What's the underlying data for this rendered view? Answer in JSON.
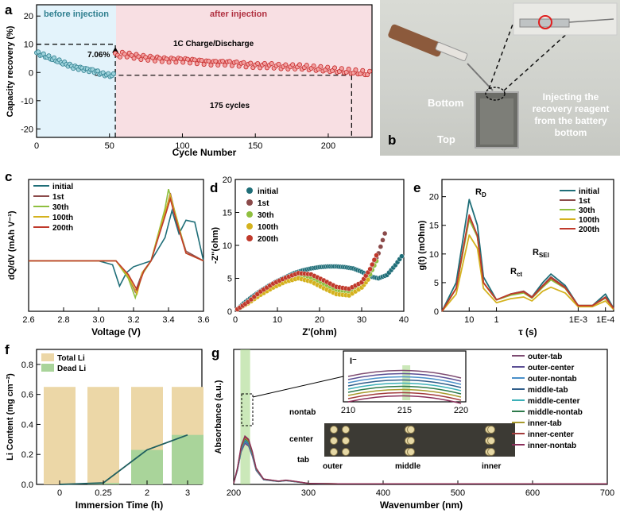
{
  "panels": {
    "a": {
      "letter": "a",
      "ylabel": "Capacity recovery (%)",
      "xlabel": "Cycle Number",
      "region_before": "before injection",
      "region_after": "after injection",
      "ann_mode": "1C Charge/Discharge",
      "ann_jump": "7.06%",
      "ann_cycles": "175 cycles",
      "xticks": [
        "0",
        "50",
        "100",
        "150",
        "200"
      ],
      "yticks": [
        "20",
        "10",
        "0",
        "-10",
        "-20"
      ],
      "colors": {
        "before": "#2f7f8f",
        "after": "#c62828",
        "before_bg": "#e3f3fb",
        "after_bg": "#f8dfe3"
      }
    },
    "b": {
      "letter": "b",
      "label_bottom": "Bottom",
      "label_top": "Top",
      "caption_lines": [
        "Injecting the",
        "recovery reagent",
        "from the battery",
        "bottom"
      ]
    },
    "c": {
      "letter": "c",
      "ylabel": "dQ/dV (mAh V⁻¹)",
      "xlabel": "Voltage (V)",
      "xticks": [
        "2.6",
        "2.8",
        "3.0",
        "3.2",
        "3.4",
        "3.6"
      ],
      "legend": [
        "initial",
        "1st",
        "30th",
        "100th",
        "200th"
      ]
    },
    "d": {
      "letter": "d",
      "ylabel": "-Z''(ohm)",
      "xlabel": "Z'(ohm)",
      "xticks": [
        "0",
        "10",
        "20",
        "30",
        "40"
      ],
      "yticks": [
        "20",
        "15",
        "10",
        "5",
        "0"
      ],
      "legend": [
        "initial",
        "1st",
        "30th",
        "100th",
        "200th"
      ]
    },
    "e": {
      "letter": "e",
      "ylabel": "g(t) (mOhm)",
      "xlabel": "τ (s)",
      "xticks": [
        "10",
        "1",
        "1E-3",
        "1E-4"
      ],
      "yticks": [
        "20",
        "15",
        "10",
        "5",
        "0"
      ],
      "peak_labels": [
        "R",
        "R",
        "R"
      ],
      "peak_subs": [
        "D",
        "ct",
        "SEI"
      ],
      "legend": [
        "initial",
        "1st",
        "30th",
        "100th",
        "200th"
      ]
    },
    "f": {
      "letter": "f",
      "ylabel": "Li Content (mg cm⁻²)",
      "xlabel": "Immersion Time (h)",
      "xticks": [
        "0",
        "0.25",
        "2",
        "3"
      ],
      "yticks": [
        "0.8",
        "0.6",
        "0.4",
        "0.2",
        "0.0"
      ],
      "legend": [
        "Total Li",
        "Dead Li"
      ]
    },
    "g": {
      "letter": "g",
      "ylabel": "Absorbance (a.u.)",
      "xlabel": "Wavenumber (nm)",
      "xticks": [
        "200",
        "300",
        "400",
        "500",
        "600",
        "700"
      ],
      "inset_title": "I⁻",
      "inset_xticks": [
        "210",
        "215",
        "220"
      ],
      "photo_rows": [
        "nontab",
        "center",
        "tab"
      ],
      "photo_cols": [
        "outer",
        "middle",
        "inner"
      ],
      "legend": [
        "outer-tab",
        "outer-center",
        "outer-nontab",
        "middle-tab",
        "middle-center",
        "middle-nontab",
        "inner-tab",
        "inner-center",
        "inner-nontab"
      ]
    }
  },
  "series_colors": {
    "initial": "#1f6e78",
    "1st": "#8b4a4a",
    "30th": "#8fbf3f",
    "100th": "#d4b21e",
    "200th": "#c0392b"
  },
  "g_colors": [
    "#7e4c72",
    "#5b4f94",
    "#4a90c9",
    "#2f5d8a",
    "#3cb0b8",
    "#2d7a4b",
    "#a89a2d",
    "#a33c3c",
    "#8a2f5a"
  ],
  "chart_data": [
    {
      "type": "scatter",
      "title": "",
      "xlabel": "Cycle Number",
      "ylabel": "Capacity recovery (%)",
      "xlim": [
        0,
        230
      ],
      "ylim": [
        -23,
        24
      ],
      "series": [
        {
          "name": "before injection",
          "x": [
            0,
            5,
            10,
            15,
            20,
            25,
            30,
            35,
            40,
            45,
            50,
            53
          ],
          "y": [
            7,
            6,
            5,
            4,
            3,
            2,
            1.5,
            1,
            0.5,
            -0.5,
            -1,
            -1
          ]
        },
        {
          "name": "after injection",
          "x": [
            54,
            60,
            70,
            80,
            90,
            100,
            110,
            120,
            130,
            140,
            150,
            160,
            170,
            180,
            190,
            200,
            210,
            220,
            229
          ],
          "y": [
            6,
            6.5,
            5.5,
            5,
            4.5,
            4.5,
            4,
            3.5,
            3.5,
            3,
            2.5,
            2.5,
            2,
            2,
            1.5,
            1,
            0.5,
            0,
            -0.5
          ]
        }
      ]
    },
    {
      "type": "line",
      "xlabel": "Voltage (V)",
      "ylabel": "dQ/dV (mAh V⁻¹)",
      "xlim": [
        2.6,
        3.6
      ],
      "series": [
        {
          "name": "initial",
          "x": [
            2.6,
            3.0,
            3.08,
            3.12,
            3.16,
            3.2,
            3.3,
            3.38,
            3.42,
            3.46,
            3.5,
            3.55,
            3.6
          ],
          "y": [
            0,
            0,
            -0.2,
            -1.3,
            -0.6,
            -0.3,
            0,
            1.2,
            2.6,
            1.4,
            2.1,
            2.0,
            0
          ]
        },
        {
          "name": "1st",
          "x": [
            2.6,
            3.1,
            3.17,
            3.21,
            3.25,
            3.3,
            3.38,
            3.41,
            3.45,
            3.5,
            3.6
          ],
          "y": [
            0,
            0,
            -0.8,
            -1.6,
            -0.6,
            0,
            2.4,
            3.5,
            2.0,
            0.5,
            0
          ]
        },
        {
          "name": "30th",
          "x": [
            2.6,
            3.1,
            3.17,
            3.21,
            3.25,
            3.3,
            3.38,
            3.4,
            3.45,
            3.5,
            3.6
          ],
          "y": [
            0,
            0,
            -0.9,
            -1.9,
            -0.7,
            0,
            2.7,
            3.7,
            2.1,
            0.4,
            0
          ]
        },
        {
          "name": "100th",
          "x": [
            2.6,
            3.1,
            3.17,
            3.22,
            3.25,
            3.3,
            3.38,
            3.41,
            3.45,
            3.5,
            3.6
          ],
          "y": [
            0,
            0,
            -0.8,
            -1.7,
            -0.6,
            0,
            2.5,
            3.4,
            2.0,
            0.4,
            0
          ]
        },
        {
          "name": "200th",
          "x": [
            2.6,
            3.1,
            3.17,
            3.22,
            3.26,
            3.3,
            3.38,
            3.41,
            3.45,
            3.5,
            3.6
          ],
          "y": [
            0,
            0,
            -0.7,
            -1.5,
            -0.5,
            0,
            2.3,
            3.2,
            1.9,
            0.4,
            0
          ]
        }
      ]
    },
    {
      "type": "scatter",
      "xlabel": "Z'(ohm)",
      "ylabel": "-Z''(ohm)",
      "xlim": [
        0,
        40
      ],
      "ylim": [
        0,
        20
      ],
      "series": [
        {
          "name": "initial",
          "x": [
            0.5,
            2,
            4,
            6,
            8,
            10,
            12,
            14,
            16,
            18,
            20,
            22,
            24,
            26,
            28,
            30,
            32,
            34,
            36,
            38,
            40
          ],
          "y": [
            0.3,
            1.2,
            2.2,
            3.1,
            3.9,
            4.6,
            5.2,
            5.8,
            6.2,
            6.5,
            6.7,
            6.8,
            6.8,
            6.7,
            6.5,
            6,
            5.3,
            5,
            5.5,
            7,
            8.8
          ]
        },
        {
          "name": "1st",
          "x": [
            0.5,
            3,
            6,
            9,
            12,
            15,
            18,
            21,
            24,
            27,
            30,
            32,
            34,
            36
          ],
          "y": [
            0.3,
            1.4,
            3,
            4.1,
            5,
            5.6,
            5.4,
            4.5,
            3.6,
            3.3,
            4.2,
            6,
            8.8,
            12.8
          ]
        },
        {
          "name": "30th",
          "x": [
            0.5,
            3,
            6,
            9,
            12,
            15,
            18,
            21,
            24,
            27,
            30,
            32,
            34
          ],
          "y": [
            0.3,
            1.3,
            2.8,
            3.9,
            4.8,
            5.3,
            5,
            4.1,
            3.1,
            2.9,
            3.8,
            5.6,
            8.3
          ]
        },
        {
          "name": "100th",
          "x": [
            0.5,
            3,
            6,
            9,
            12,
            15,
            18,
            21,
            24,
            27,
            30,
            32
          ],
          "y": [
            0.3,
            1.2,
            2.5,
            3.6,
            4.5,
            5,
            4.5,
            3.5,
            2.6,
            2.4,
            3.6,
            5.2
          ]
        },
        {
          "name": "200th",
          "x": [
            0.5,
            3,
            6,
            9,
            12,
            15,
            18,
            21,
            24,
            27,
            30,
            32,
            34
          ],
          "y": [
            0.3,
            1.4,
            3,
            4.2,
            5.1,
            5.8,
            5.6,
            4.7,
            3.7,
            3.4,
            4.4,
            6.4,
            9.2
          ]
        }
      ]
    },
    {
      "type": "line",
      "xlabel": "τ (s)",
      "ylabel": "g(t) (mOhm)",
      "ylim": [
        0,
        23
      ],
      "series": [
        {
          "name": "initial",
          "x": [
            100,
            30,
            10,
            5,
            3,
            1,
            0.3,
            0.1,
            0.05,
            0.02,
            0.01,
            0.003,
            0.001,
            0.0003,
            0.0001,
            5e-05
          ],
          "y": [
            0,
            5,
            19.5,
            15,
            6,
            2,
            3,
            3.5,
            2.5,
            5,
            6.5,
            4.5,
            1,
            1,
            3,
            0.5
          ]
        },
        {
          "name": "1st",
          "x": [
            100,
            30,
            10,
            5,
            3,
            1,
            0.3,
            0.1,
            0.05,
            0.02,
            0.01,
            0.003,
            0.001,
            0.0003,
            0.0001,
            5e-05
          ],
          "y": [
            0,
            4,
            16.5,
            13,
            5,
            2,
            3,
            3.5,
            2.5,
            4.5,
            6,
            4.2,
            1,
            1,
            2.5,
            0.5
          ]
        },
        {
          "name": "30th",
          "x": [
            100,
            30,
            10,
            5,
            3,
            1,
            0.3,
            0.1,
            0.05,
            0.02,
            0.01,
            0.003,
            0.001,
            0.0003,
            0.0001,
            5e-05
          ],
          "y": [
            0,
            4,
            16,
            13,
            5,
            2,
            2.8,
            3.2,
            2.3,
            4.2,
            5.5,
            4,
            1,
            1,
            2.3,
            0.5
          ]
        },
        {
          "name": "100th",
          "x": [
            100,
            30,
            10,
            5,
            3,
            1,
            0.3,
            0.1,
            0.05,
            0.02,
            0.01,
            0.003,
            0.001,
            0.0003,
            0.0001,
            5e-05
          ],
          "y": [
            0,
            3,
            13.3,
            11,
            4,
            1.5,
            2.2,
            2.5,
            1.8,
            3.5,
            4.2,
            3.2,
            0.8,
            0.8,
            1.8,
            0.3
          ]
        },
        {
          "name": "200th",
          "x": [
            100,
            30,
            10,
            5,
            3,
            1,
            0.3,
            0.1,
            0.05,
            0.02,
            0.01,
            0.003,
            0.001,
            0.0003,
            0.0001,
            5e-05
          ],
          "y": [
            0,
            4,
            16.8,
            13.2,
            5,
            2,
            3,
            3.4,
            2.4,
            4.4,
            5.8,
            4.1,
            1,
            1,
            2.4,
            0.5
          ]
        }
      ]
    },
    {
      "type": "bar",
      "xlabel": "Immersion Time (h)",
      "ylabel": "Li Content (mg cm⁻²)",
      "categories": [
        "0",
        "0.25",
        "2",
        "3"
      ],
      "ylim": [
        0,
        0.9
      ],
      "series": [
        {
          "name": "Total Li",
          "values": [
            0.65,
            0.65,
            0.65,
            0.65
          ]
        },
        {
          "name": "Dead Li",
          "values": [
            0,
            0.01,
            0.23,
            0.33
          ]
        }
      ]
    },
    {
      "type": "line",
      "xlabel": "Wavenumber (nm)",
      "ylabel": "Absorbance (a.u.)",
      "xlim": [
        200,
        700
      ],
      "series": [
        {
          "name": "outer-tab",
          "x": [
            200,
            205,
            210,
            215,
            220,
            225,
            230,
            240,
            260,
            270,
            280,
            300,
            350,
            400,
            500,
            700
          ],
          "y": [
            0.02,
            0.3,
            0.7,
            0.88,
            0.82,
            0.6,
            0.3,
            0.1,
            0.06,
            0.08,
            0.06,
            0.02,
            0.01,
            0.01,
            0.01,
            0.01
          ]
        }
      ]
    }
  ]
}
